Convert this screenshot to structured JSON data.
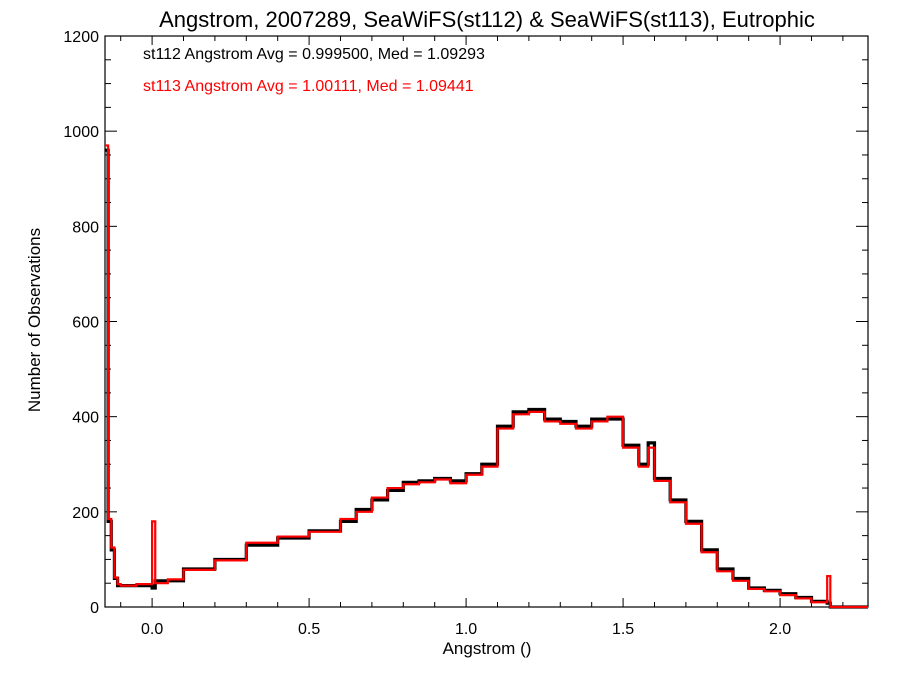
{
  "chart_data": {
    "type": "line",
    "title": "Angstrom, 2007289, SeaWiFS(st112) & SeaWiFS(st113), Eutrophic",
    "xlabel": "Angstrom ()",
    "ylabel": "Number of Observations",
    "xlim": [
      -0.15,
      2.28
    ],
    "ylim": [
      0,
      1200
    ],
    "xticks": [
      0.0,
      0.5,
      1.0,
      1.5,
      2.0
    ],
    "xtick_labels": [
      "0.0",
      "0.5",
      "1.0",
      "1.5",
      "2.0"
    ],
    "yticks": [
      0,
      200,
      400,
      600,
      800,
      1000,
      1200
    ],
    "ytick_labels": [
      "0",
      "200",
      "400",
      "600",
      "800",
      "1000",
      "1200"
    ],
    "grid": false,
    "annotations": [
      {
        "text": "st112 Angstrom Avg = 0.999500, Med = 1.09293",
        "color": "#000000"
      },
      {
        "text": "st113 Angstrom Avg = 1.00111, Med = 1.09441",
        "color": "#ff0000"
      }
    ],
    "series": [
      {
        "color": "#000000",
        "x": [
          -0.15,
          -0.14,
          -0.13,
          -0.12,
          -0.11,
          -0.1,
          -0.05,
          0.0,
          0.01,
          0.05,
          0.1,
          0.2,
          0.3,
          0.4,
          0.5,
          0.6,
          0.65,
          0.7,
          0.75,
          0.8,
          0.85,
          0.9,
          0.95,
          1.0,
          1.05,
          1.1,
          1.15,
          1.2,
          1.25,
          1.3,
          1.35,
          1.4,
          1.45,
          1.5,
          1.55,
          1.58,
          1.6,
          1.65,
          1.7,
          1.75,
          1.8,
          1.85,
          1.9,
          1.95,
          2.0,
          2.05,
          2.1,
          2.15,
          2.16,
          2.2,
          2.28
        ],
        "values": [
          960,
          180,
          120,
          60,
          45,
          45,
          45,
          40,
          55,
          55,
          80,
          100,
          130,
          145,
          160,
          180,
          205,
          225,
          245,
          262,
          265,
          270,
          265,
          280,
          300,
          380,
          410,
          415,
          395,
          390,
          380,
          395,
          395,
          340,
          300,
          345,
          270,
          225,
          180,
          120,
          80,
          60,
          40,
          35,
          28,
          20,
          12,
          8,
          0,
          0,
          0
        ]
      },
      {
        "color": "#ff0000",
        "x": [
          -0.15,
          -0.14,
          -0.13,
          -0.12,
          -0.11,
          -0.1,
          -0.05,
          0.0,
          0.01,
          0.05,
          0.1,
          0.2,
          0.3,
          0.4,
          0.5,
          0.6,
          0.65,
          0.7,
          0.75,
          0.8,
          0.85,
          0.9,
          0.95,
          1.0,
          1.05,
          1.1,
          1.15,
          1.2,
          1.25,
          1.3,
          1.35,
          1.4,
          1.45,
          1.5,
          1.55,
          1.58,
          1.6,
          1.65,
          1.7,
          1.75,
          1.8,
          1.85,
          1.9,
          1.95,
          2.0,
          2.05,
          2.1,
          2.15,
          2.16,
          2.2,
          2.28
        ],
        "values": [
          970,
          185,
          125,
          62,
          48,
          45,
          48,
          180,
          50,
          58,
          78,
          98,
          135,
          148,
          158,
          185,
          200,
          230,
          250,
          258,
          262,
          268,
          260,
          278,
          295,
          375,
          405,
          410,
          390,
          385,
          375,
          390,
          400,
          335,
          295,
          335,
          265,
          220,
          175,
          115,
          75,
          55,
          38,
          33,
          25,
          18,
          10,
          65,
          0,
          0,
          0
        ]
      }
    ]
  }
}
